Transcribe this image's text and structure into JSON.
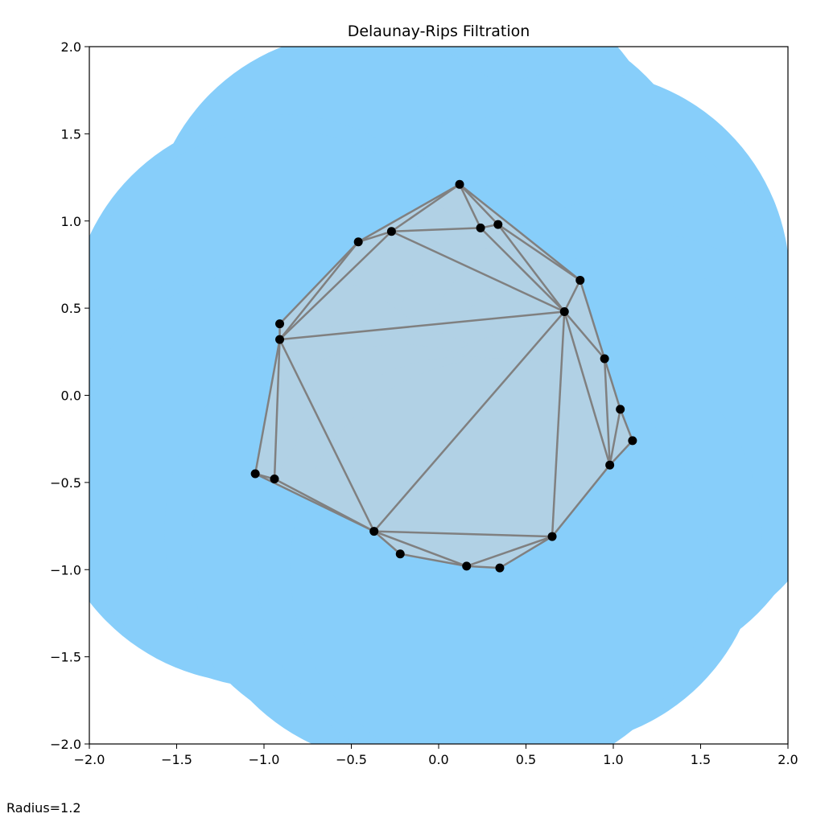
{
  "chart_data": {
    "type": "scatter",
    "title": "Delaunay-Rips Filtration",
    "xlabel": "",
    "ylabel": "",
    "xlim": [
      -2.0,
      2.0
    ],
    "ylim": [
      -2.0,
      2.0
    ],
    "grid": false,
    "x_ticks": [
      "−2.0",
      "−1.5",
      "−1.0",
      "−0.5",
      "0.0",
      "0.5",
      "1.0",
      "1.5",
      "2.0"
    ],
    "y_ticks": [
      "−2.0",
      "−1.5",
      "−1.0",
      "−0.5",
      "0.0",
      "0.5",
      "1.0",
      "1.5",
      "2.0"
    ],
    "annotation": "Radius=1.2",
    "radius": 1.2,
    "colors": {
      "disk": "#87CEFA",
      "simplex": "#D3D3D3",
      "edge": "#808080",
      "point": "#000000"
    },
    "points": [
      [
        0.12,
        1.21
      ],
      [
        0.24,
        0.96
      ],
      [
        0.34,
        0.98
      ],
      [
        -0.27,
        0.94
      ],
      [
        -0.46,
        0.88
      ],
      [
        0.81,
        0.66
      ],
      [
        0.72,
        0.48
      ],
      [
        -0.91,
        0.41
      ],
      [
        -0.91,
        0.32
      ],
      [
        0.95,
        0.21
      ],
      [
        1.04,
        -0.08
      ],
      [
        1.11,
        -0.26
      ],
      [
        0.98,
        -0.4
      ],
      [
        -1.05,
        -0.45
      ],
      [
        -0.94,
        -0.48
      ],
      [
        -0.37,
        -0.78
      ],
      [
        0.65,
        -0.81
      ],
      [
        -0.22,
        -0.91
      ],
      [
        0.16,
        -0.98
      ],
      [
        0.35,
        -0.99
      ]
    ],
    "triangles": [
      [
        0,
        3,
        4
      ],
      [
        0,
        1,
        3
      ],
      [
        0,
        1,
        2
      ],
      [
        0,
        2,
        5
      ],
      [
        1,
        2,
        6
      ],
      [
        2,
        5,
        6
      ],
      [
        1,
        3,
        6
      ],
      [
        3,
        4,
        8
      ],
      [
        4,
        7,
        8
      ],
      [
        3,
        6,
        8
      ],
      [
        6,
        8,
        15
      ],
      [
        8,
        13,
        14
      ],
      [
        8,
        14,
        15
      ],
      [
        13,
        14,
        15
      ],
      [
        6,
        15,
        16
      ],
      [
        15,
        16,
        18
      ],
      [
        15,
        17,
        18
      ],
      [
        16,
        18,
        19
      ],
      [
        6,
        12,
        16
      ],
      [
        6,
        9,
        12
      ],
      [
        5,
        6,
        9
      ],
      [
        9,
        10,
        12
      ],
      [
        10,
        11,
        12
      ]
    ]
  }
}
